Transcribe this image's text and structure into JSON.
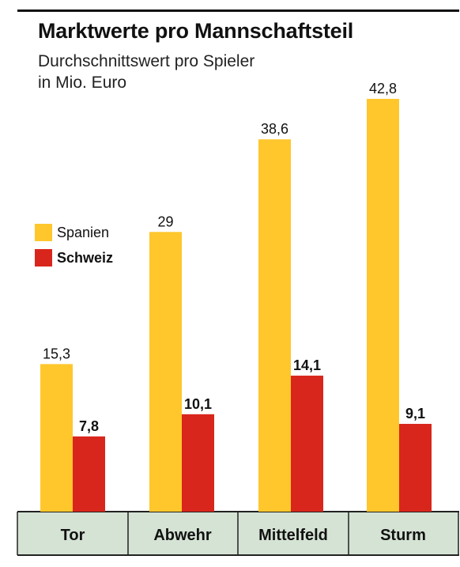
{
  "title": "Marktwerte pro Mannschaftsteil",
  "subtitle_line1": "Durchschnittswert pro Spieler",
  "subtitle_line2": "in Mio. Euro",
  "colors": {
    "spanien": "#FFC72C",
    "schweiz": "#D9261C",
    "axis_band": "#D5E3D4"
  },
  "legend": {
    "items": [
      {
        "label": "Spanien",
        "color": "#FFC72C"
      },
      {
        "label": "Schweiz",
        "color": "#D9261C"
      }
    ]
  },
  "chart_data": {
    "type": "bar",
    "categories": [
      "Tor",
      "Abwehr",
      "Mittelfeld",
      "Sturm"
    ],
    "series": [
      {
        "name": "Spanien",
        "values": [
          15.3,
          29,
          38.6,
          42.8
        ],
        "labels": [
          "15,3",
          "29",
          "38,6",
          "42,8"
        ]
      },
      {
        "name": "Schweiz",
        "values": [
          7.8,
          10.1,
          14.1,
          9.1
        ],
        "labels": [
          "7,8",
          "10,1",
          "14,1",
          "9,1"
        ]
      }
    ],
    "title": "Marktwerte pro Mannschaftsteil",
    "xlabel": "",
    "ylabel": "",
    "legend_position": "left",
    "grid": false
  }
}
